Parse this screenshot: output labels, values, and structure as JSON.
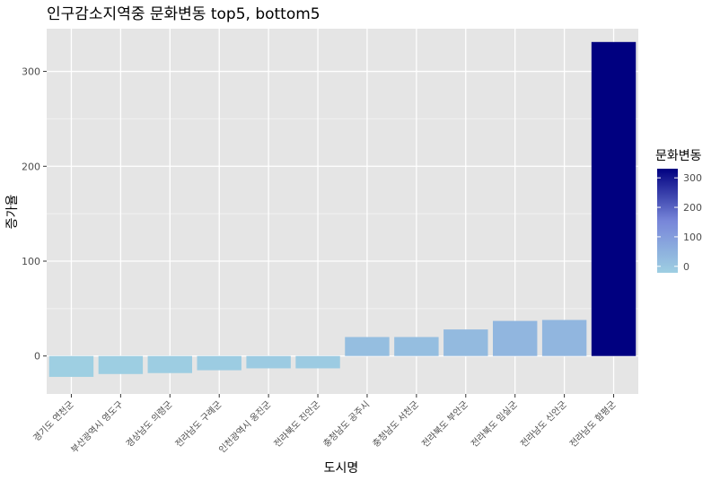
{
  "chart_data": {
    "type": "bar",
    "title": "인구감소지역중 문화변동 top5, bottom5",
    "xlabel": "도시명",
    "ylabel": "증가율",
    "categories": [
      "경기도 연천군",
      "부산광역시 영도구",
      "경상남도 의령군",
      "전라남도 구례군",
      "인천광역시 옹진군",
      "전라북도 진안군",
      "충청남도 공주시",
      "충청남도 서천군",
      "전라북도 부안군",
      "전라북도 임실군",
      "전라남도 신안군",
      "전라남도 함평군"
    ],
    "values": [
      -22,
      -19,
      -18,
      -15,
      -13,
      -13,
      20,
      20,
      28,
      37,
      38,
      331
    ],
    "ylim": [
      -40,
      345
    ],
    "yticks": [
      0,
      100,
      200,
      300
    ],
    "grid": true,
    "legend": {
      "title": "문화변동",
      "placement": "right",
      "ticks": [
        0,
        100,
        200,
        300
      ],
      "range": [
        -22,
        331
      ],
      "color_low": "#9ecfe2",
      "color_high": "#000080"
    },
    "colors": {
      "panel_bg": "#e5e5e5",
      "grid_major": "#ffffff"
    }
  }
}
